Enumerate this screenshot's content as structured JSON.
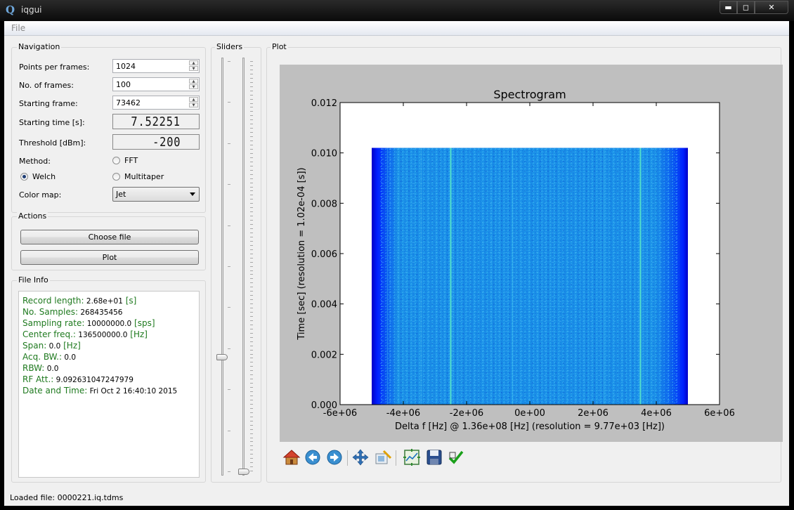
{
  "window": {
    "title": "iqgui",
    "icon": "qt-logo-icon",
    "min_label": "▬",
    "max_label": "◻",
    "close_label": "✕"
  },
  "menu": {
    "file": "File"
  },
  "navigation": {
    "title": "Navigation",
    "points_label": "Points per frames:",
    "points_value": "1024",
    "frames_label": "No. of frames:",
    "frames_value": "100",
    "start_frame_label": "Starting frame:",
    "start_frame_value": "73462",
    "start_time_label": "Starting time [s]:",
    "start_time_value": "7.52251",
    "threshold_label": "Threshold [dBm]:",
    "threshold_value": "-200",
    "method_label": "Method:",
    "method_fft": "FFT",
    "method_welch": "Welch",
    "method_multitaper": "Multitaper",
    "method_selected": "Welch",
    "colormap_label": "Color map:",
    "colormap_value": "Jet"
  },
  "actions": {
    "title": "Actions",
    "choose_file": "Choose file",
    "plot": "Plot"
  },
  "file_info": {
    "title": "File Info",
    "rows": [
      {
        "key": "Record length:",
        "value": "2.68e+01",
        "unit": "[s]"
      },
      {
        "key": "No. Samples:",
        "value": "268435456",
        "unit": ""
      },
      {
        "key": "Sampling rate:",
        "value": "10000000.0",
        "unit": "[sps]"
      },
      {
        "key": "Center freq.:",
        "value": "136500000.0",
        "unit": "[Hz]"
      },
      {
        "key": "Span:",
        "value": "0.0",
        "unit": "[Hz]"
      },
      {
        "key": "Acq. BW.:",
        "value": "0.0",
        "unit": ""
      },
      {
        "key": "RBW:",
        "value": "0.0",
        "unit": ""
      },
      {
        "key": "RF Att.:",
        "value": "9.092631047247979",
        "unit": ""
      },
      {
        "key": "Date and Time:",
        "value": "Fri Oct 2 16:40:10 2015",
        "unit": ""
      }
    ]
  },
  "sliders": {
    "title": "Sliders",
    "slider1_level": 0.29,
    "slider2_level": 0.0
  },
  "plot_group": {
    "title": "Plot"
  },
  "chart_data": {
    "type": "heatmap",
    "title": "Spectrogram",
    "xlabel": "Delta f [Hz] @ 1.36e+08 [Hz] (resolution = 9.77e+03 [Hz])",
    "ylabel": "Time [sec] (resolution = 1.02e-04 [s])",
    "xlim": [
      -6000000,
      6000000
    ],
    "ylim": [
      0,
      0.012
    ],
    "x_ticks": [
      -6000000,
      -4000000,
      -2000000,
      0,
      2000000,
      4000000,
      6000000
    ],
    "x_tick_labels": [
      "-6e+06",
      "-4e+06",
      "-2e+06",
      "0e+00",
      "2e+06",
      "4e+06",
      "6e+06"
    ],
    "y_ticks": [
      0,
      0.002,
      0.004,
      0.006,
      0.008,
      0.01,
      0.012
    ],
    "y_tick_labels": [
      "0.000",
      "0.002",
      "0.004",
      "0.006",
      "0.008",
      "0.010",
      "0.012"
    ],
    "data_extent_x": [
      -5000000,
      5000000
    ],
    "data_extent_y": [
      0,
      0.0102
    ],
    "colormap": "jet",
    "bright_lines_x": [
      -2500000,
      3500000
    ]
  },
  "toolbar": [
    "home-icon",
    "back-icon",
    "forward-icon",
    "pan-icon",
    "zoom-icon",
    "subplots-icon",
    "save-icon",
    "check-icon"
  ],
  "status": "Loaded file: 0000221.iq.tdms"
}
